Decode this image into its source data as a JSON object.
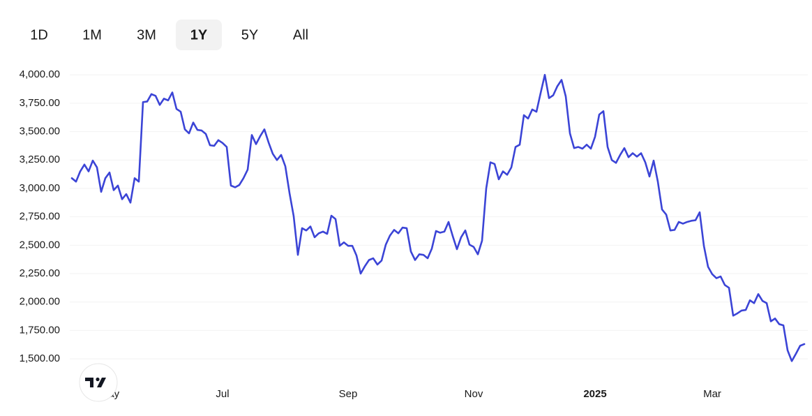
{
  "range_selector": {
    "options": [
      "1D",
      "1M",
      "3M",
      "1Y",
      "5Y",
      "All"
    ],
    "selected": 3
  },
  "chart_data": {
    "type": "line",
    "color": "#3b44d6",
    "grid": true,
    "ylim": [
      1310,
      4075
    ],
    "yticks": [
      {
        "value": 4000,
        "label": "4,000.00"
      },
      {
        "value": 3750,
        "label": "3,750.00"
      },
      {
        "value": 3500,
        "label": "3,500.00"
      },
      {
        "value": 3250,
        "label": "3,250.00"
      },
      {
        "value": 3000,
        "label": "3,000.00"
      },
      {
        "value": 2750,
        "label": "2,750.00"
      },
      {
        "value": 2500,
        "label": "2,500.00"
      },
      {
        "value": 2250,
        "label": "2,250.00"
      },
      {
        "value": 2000,
        "label": "2,000.00"
      },
      {
        "value": 1750,
        "label": "1,750.00"
      },
      {
        "value": 1500,
        "label": "1,500.00"
      }
    ],
    "categories": [
      null,
      null,
      null,
      null,
      null,
      null,
      null,
      null,
      null,
      "May",
      null,
      null,
      null,
      null,
      null,
      null,
      null,
      null,
      null,
      null,
      null,
      null,
      null,
      null,
      null,
      null,
      null,
      null,
      null,
      null,
      null,
      null,
      null,
      null,
      null,
      null,
      "Jul",
      null,
      null,
      null,
      null,
      null,
      null,
      null,
      null,
      null,
      null,
      null,
      null,
      null,
      null,
      null,
      null,
      null,
      null,
      null,
      null,
      null,
      null,
      null,
      null,
      null,
      null,
      null,
      null,
      null,
      "Sep",
      null,
      null,
      null,
      null,
      null,
      null,
      null,
      null,
      null,
      null,
      null,
      null,
      null,
      null,
      null,
      null,
      null,
      null,
      null,
      null,
      null,
      null,
      null,
      null,
      null,
      null,
      null,
      null,
      null,
      "Nov",
      null,
      null,
      null,
      null,
      null,
      null,
      null,
      null,
      null,
      null,
      null,
      null,
      null,
      null,
      null,
      null,
      null,
      null,
      null,
      null,
      null,
      null,
      null,
      null,
      null,
      null,
      null,
      null,
      "2025",
      null,
      null,
      null,
      null,
      null,
      null,
      null,
      null,
      null,
      null,
      null,
      null,
      null,
      null,
      null,
      null,
      null,
      null,
      null,
      null,
      null,
      null,
      null,
      null,
      null,
      null,
      null,
      "Mar",
      null,
      null,
      null,
      null,
      null,
      null,
      null,
      null,
      null,
      null,
      null,
      null,
      null,
      null,
      null,
      null,
      null,
      null,
      null,
      null,
      null,
      null
    ],
    "values": [
      3090,
      3060,
      3150,
      3210,
      3150,
      3245,
      3185,
      2970,
      3090,
      3140,
      2985,
      3025,
      2905,
      2950,
      2875,
      3090,
      3060,
      3760,
      3765,
      3830,
      3815,
      3735,
      3790,
      3775,
      3845,
      3700,
      3675,
      3520,
      3485,
      3580,
      3515,
      3510,
      3480,
      3380,
      3375,
      3425,
      3400,
      3365,
      3025,
      3010,
      3030,
      3090,
      3165,
      3470,
      3390,
      3460,
      3520,
      3405,
      3305,
      3250,
      3295,
      3195,
      2960,
      2755,
      2415,
      2650,
      2630,
      2665,
      2570,
      2605,
      2620,
      2600,
      2760,
      2730,
      2495,
      2525,
      2495,
      2495,
      2410,
      2250,
      2315,
      2370,
      2385,
      2330,
      2365,
      2505,
      2585,
      2635,
      2605,
      2655,
      2650,
      2445,
      2370,
      2420,
      2415,
      2385,
      2470,
      2625,
      2610,
      2620,
      2705,
      2580,
      2465,
      2570,
      2630,
      2505,
      2485,
      2420,
      2540,
      3000,
      3230,
      3215,
      3080,
      3150,
      3120,
      3185,
      3365,
      3385,
      3645,
      3615,
      3695,
      3675,
      3840,
      4000,
      3795,
      3820,
      3900,
      3955,
      3810,
      3485,
      3355,
      3365,
      3350,
      3385,
      3350,
      3455,
      3650,
      3680,
      3365,
      3250,
      3225,
      3295,
      3355,
      3275,
      3310,
      3280,
      3310,
      3230,
      3105,
      3245,
      3060,
      2815,
      2770,
      2630,
      2635,
      2705,
      2690,
      2705,
      2715,
      2720,
      2790,
      2495,
      2310,
      2245,
      2210,
      2225,
      2150,
      2125,
      1880,
      1900,
      1925,
      1930,
      2015,
      1990,
      2070,
      2010,
      1990,
      1830,
      1855,
      1805,
      1795,
      1575,
      1480,
      1545,
      1615,
      1630
    ]
  }
}
